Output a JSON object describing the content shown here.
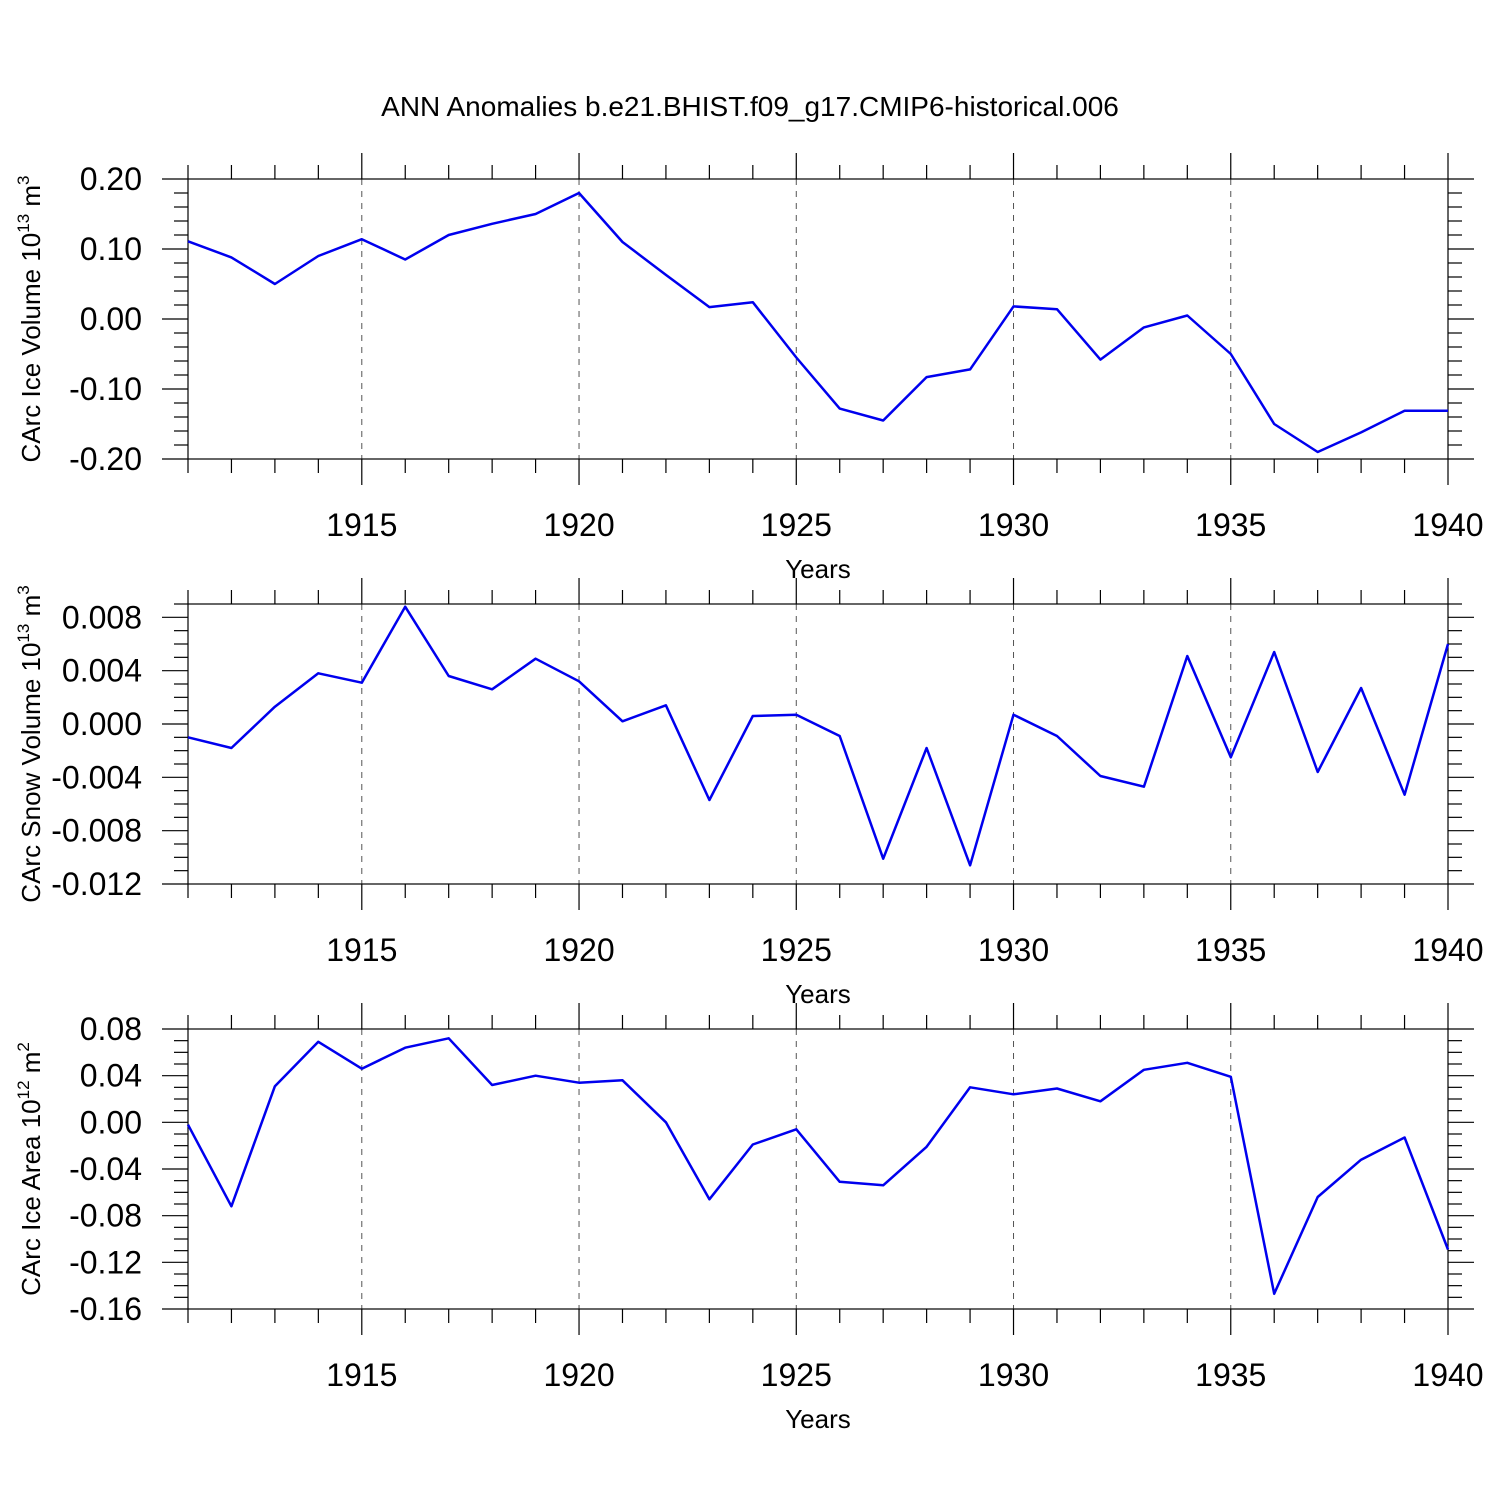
{
  "title": "ANN Anomalies b.e21.BHIST.f09_g17.CMIP6-historical.006",
  "chart_data": [
    {
      "type": "line",
      "title": "ANN Anomalies b.e21.BHIST.f09_g17.CMIP6-historical.006",
      "ylabel": "CArc Ice Volume 10",
      "ylabel_exp1": "13",
      "ylabel_unit": " m",
      "ylabel_exp2": "3",
      "xlabel": "Years",
      "xlim": [
        1911,
        1940
      ],
      "ylim": [
        -0.2,
        0.2
      ],
      "x_ticks": [
        "1915",
        "1920",
        "1925",
        "1930",
        "1935",
        "1940"
      ],
      "y_ticks": [
        "0.20",
        "0.10",
        "0.00",
        "-0.10",
        "-0.20"
      ],
      "x": [
        1911,
        1912,
        1913,
        1914,
        1915,
        1916,
        1917,
        1918,
        1919,
        1920,
        1921,
        1922,
        1923,
        1924,
        1925,
        1926,
        1927,
        1928,
        1929,
        1930,
        1931,
        1932,
        1933,
        1934,
        1935,
        1936,
        1937,
        1938,
        1939,
        1940
      ],
      "series": [
        {
          "name": "CArc Ice Volume",
          "color": "#0000ee",
          "values": [
            0.111,
            0.088,
            0.05,
            0.09,
            0.114,
            0.085,
            0.12,
            0.136,
            0.15,
            0.18,
            0.11,
            0.063,
            0.017,
            0.024,
            -0.055,
            -0.128,
            -0.145,
            -0.083,
            -0.072,
            0.018,
            0.014,
            -0.058,
            -0.012,
            0.005,
            -0.05,
            -0.15,
            -0.19,
            -0.162,
            -0.131,
            -0.131
          ]
        }
      ]
    },
    {
      "type": "line",
      "ylabel": "CArc Snow Volume 10",
      "ylabel_exp1": "13",
      "ylabel_unit": " m",
      "ylabel_exp2": "3",
      "xlabel": "Years",
      "xlim": [
        1911,
        1940
      ],
      "ylim": [
        -0.012,
        0.009
      ],
      "x_ticks": [
        "1915",
        "1920",
        "1925",
        "1930",
        "1935",
        "1940"
      ],
      "y_ticks": [
        "0.008",
        "0.004",
        "0.000",
        "-0.004",
        "-0.008",
        "-0.012"
      ],
      "x": [
        1911,
        1912,
        1913,
        1914,
        1915,
        1916,
        1917,
        1918,
        1919,
        1920,
        1921,
        1922,
        1923,
        1924,
        1925,
        1926,
        1927,
        1928,
        1929,
        1930,
        1931,
        1932,
        1933,
        1934,
        1935,
        1936,
        1937,
        1938,
        1939,
        1940
      ],
      "series": [
        {
          "name": "CArc Snow Volume",
          "color": "#0000ee",
          "values": [
            -0.001,
            -0.0018,
            0.0013,
            0.0038,
            0.0031,
            0.0088,
            0.0036,
            0.0026,
            0.0049,
            0.0032,
            0.0002,
            0.0014,
            -0.0057,
            0.0006,
            0.0007,
            -0.0009,
            -0.0101,
            -0.0018,
            -0.0106,
            0.0007,
            -0.0009,
            -0.0039,
            -0.0047,
            0.0051,
            -0.0025,
            0.0054,
            -0.0036,
            0.0027,
            -0.0053,
            0.006
          ]
        }
      ]
    },
    {
      "type": "line",
      "ylabel": "CArc Ice Area 10",
      "ylabel_exp1": "12",
      "ylabel_unit": " m",
      "ylabel_exp2": "2",
      "xlabel": "Years",
      "xlim": [
        1911,
        1940
      ],
      "ylim": [
        -0.16,
        0.08
      ],
      "x_ticks": [
        "1915",
        "1920",
        "1925",
        "1930",
        "1935",
        "1940"
      ],
      "y_ticks": [
        "0.08",
        "0.04",
        "0.00",
        "-0.04",
        "-0.08",
        "-0.12",
        "-0.16"
      ],
      "x": [
        1911,
        1912,
        1913,
        1914,
        1915,
        1916,
        1917,
        1918,
        1919,
        1920,
        1921,
        1922,
        1923,
        1924,
        1925,
        1926,
        1927,
        1928,
        1929,
        1930,
        1931,
        1932,
        1933,
        1934,
        1935,
        1936,
        1937,
        1938,
        1939,
        1940
      ],
      "series": [
        {
          "name": "CArc Ice Area",
          "color": "#0000ee",
          "values": [
            -0.002,
            -0.072,
            0.031,
            0.069,
            0.046,
            0.064,
            0.072,
            0.032,
            0.04,
            0.034,
            0.036,
            0.0,
            -0.066,
            -0.019,
            -0.006,
            -0.051,
            -0.054,
            -0.021,
            0.03,
            0.024,
            0.029,
            0.018,
            0.045,
            0.051,
            0.039,
            -0.147,
            -0.064,
            -0.032,
            -0.013,
            -0.109
          ]
        }
      ]
    }
  ]
}
